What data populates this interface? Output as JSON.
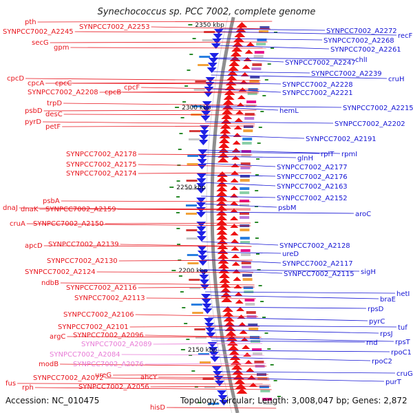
{
  "header": {
    "title": "Synechococcus sp. PCC 7002, complete genome"
  },
  "footer": {
    "accession": "Accession: NC_010475",
    "summary": "Topology: circular; Length: 3,008,047 bp; Genes: 2,872"
  },
  "colors": {
    "left_label": "#e8141c",
    "left_label_faded": "#e87ad6",
    "right_label": "#1414d4",
    "forward_feature": "#ee1111",
    "reverse_feature": "#1e22e6",
    "backbone": "#8f8f8f",
    "ruler_tick": "#2a8a2a"
  },
  "ruler": [
    {
      "label": "2350 kbp"
    },
    {
      "label": "2300 kbp"
    },
    {
      "label": "2250 kbp"
    },
    {
      "label": "2200 kbp"
    },
    {
      "label": "2150 kbp"
    }
  ],
  "left_labels": [
    {
      "text": "pth",
      "faded": false
    },
    {
      "text": "SYNPCC7002_A2245",
      "faded": false
    },
    {
      "text": "SYNPCC7002_A2253",
      "faded": false
    },
    {
      "text": "secG",
      "faded": false
    },
    {
      "text": "gpm",
      "faded": false
    },
    {
      "text": "cpcD",
      "faded": false
    },
    {
      "text": "cpcA",
      "faded": false
    },
    {
      "text": "cpcC",
      "faded": false
    },
    {
      "text": "cpcF",
      "faded": false
    },
    {
      "text": "SYNPCC7002_A2208",
      "faded": false
    },
    {
      "text": "cpcB",
      "faded": false
    },
    {
      "text": "trpD",
      "faded": false
    },
    {
      "text": "psbD",
      "faded": false
    },
    {
      "text": "desC",
      "faded": false
    },
    {
      "text": "pyrD",
      "faded": false
    },
    {
      "text": "petF",
      "faded": false
    },
    {
      "text": "SYNPCC7002_A2178",
      "faded": false
    },
    {
      "text": "SYNPCC7002_A2175",
      "faded": false
    },
    {
      "text": "SYNPCC7002_A2174",
      "faded": false
    },
    {
      "text": "psbA",
      "faded": false
    },
    {
      "text": "dnaJ",
      "faded": false
    },
    {
      "text": "dnaK",
      "faded": false
    },
    {
      "text": "SYNPCC7002_A2159",
      "faded": false
    },
    {
      "text": "cruA",
      "faded": false
    },
    {
      "text": "SYNPCC7002_A2150",
      "faded": false
    },
    {
      "text": "apcD",
      "faded": false
    },
    {
      "text": "SYNPCC7002_A2139",
      "faded": false
    },
    {
      "text": "SYNPCC7002_A2130",
      "faded": false
    },
    {
      "text": "SYNPCC7002_A2124",
      "faded": false
    },
    {
      "text": "ndbB",
      "faded": false
    },
    {
      "text": "SYNPCC7002_A2116",
      "faded": false
    },
    {
      "text": "SYNPCC7002_A2113",
      "faded": false
    },
    {
      "text": "SYNPCC7002_A2106",
      "faded": false
    },
    {
      "text": "SYNPCC7002_A2101",
      "faded": false
    },
    {
      "text": "argC",
      "faded": false
    },
    {
      "text": "SYNPCC7002_A2096",
      "faded": false
    },
    {
      "text": "SYNPCC7002_A2089",
      "faded": true
    },
    {
      "text": "SYNPCC7002_A2084",
      "faded": true
    },
    {
      "text": "modB",
      "faded": false
    },
    {
      "text": "SYNPCC7002_A2076",
      "faded": true
    },
    {
      "text": "fus",
      "faded": false
    },
    {
      "text": "SYNPCC7002_A2072",
      "faded": false
    },
    {
      "text": "ureG",
      "faded": false
    },
    {
      "text": "ahcY",
      "faded": false
    },
    {
      "text": "rph",
      "faded": false
    },
    {
      "text": "SYNPCC7002_A2056",
      "faded": false
    },
    {
      "text": "hisD",
      "faded": false
    }
  ],
  "right_labels": [
    {
      "text": "SYNPCC7002_A2272"
    },
    {
      "text": "recF"
    },
    {
      "text": "SYNPCC7002_A2268"
    },
    {
      "text": "SYNPCC7002_A2261"
    },
    {
      "text": "chlI"
    },
    {
      "text": "SYNPCC7002_A2247"
    },
    {
      "text": "SYNPCC7002_A2239"
    },
    {
      "text": "cruH"
    },
    {
      "text": "SYNPCC7002_A2228"
    },
    {
      "text": "SYNPCC7002_A2221"
    },
    {
      "text": "SYNPCC7002_A2215"
    },
    {
      "text": "hemL"
    },
    {
      "text": "SYNPCC7002_A2202"
    },
    {
      "text": "SYNPCC7002_A2191"
    },
    {
      "text": "rplT"
    },
    {
      "text": "rpmI"
    },
    {
      "text": "glnH"
    },
    {
      "text": "SYNPCC7002_A2177"
    },
    {
      "text": "SYNPCC7002_A2176"
    },
    {
      "text": "SYNPCC7002_A2163"
    },
    {
      "text": "SYNPCC7002_A2152"
    },
    {
      "text": "psbM"
    },
    {
      "text": "aroC"
    },
    {
      "text": "SYNPCC7002_A2128"
    },
    {
      "text": "ureD"
    },
    {
      "text": "SYNPCC7002_A2117"
    },
    {
      "text": "sigH"
    },
    {
      "text": "SYNPCC7002_A2115"
    },
    {
      "text": "hetI"
    },
    {
      "text": "braE"
    },
    {
      "text": "rpsD"
    },
    {
      "text": "pyrC"
    },
    {
      "text": "tuf"
    },
    {
      "text": "rpsJ"
    },
    {
      "text": "rnd"
    },
    {
      "text": "rpsT"
    },
    {
      "text": "rpoC1"
    },
    {
      "text": "rpoC2"
    },
    {
      "text": "cruG"
    },
    {
      "text": "purT"
    }
  ]
}
